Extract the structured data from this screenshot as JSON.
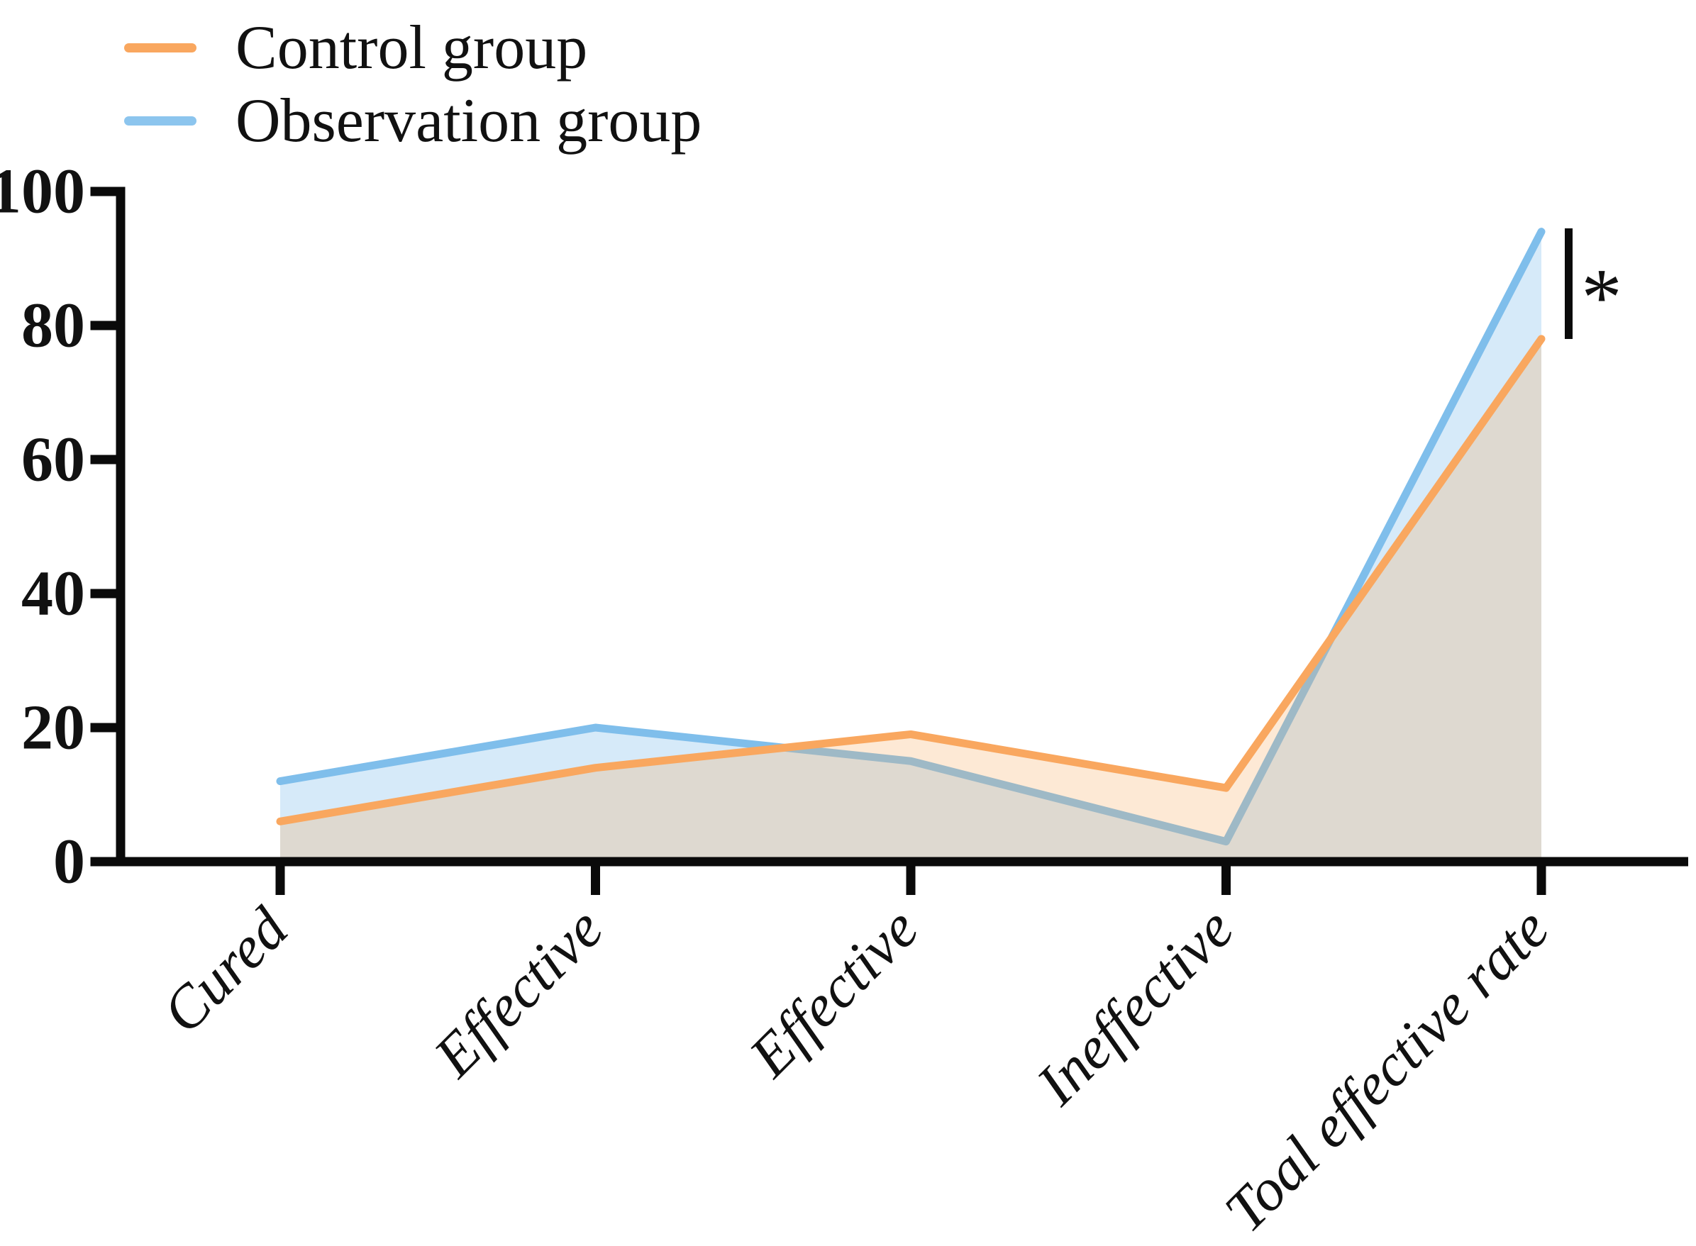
{
  "figure": {
    "background": "#ffffff"
  },
  "legend": {
    "items": [
      {
        "label": "Control group",
        "color": "#F9A75F"
      },
      {
        "label": "Observation group",
        "color": "#8CC5EE"
      }
    ]
  },
  "chart_data": {
    "type": "area",
    "title": "",
    "xlabel": "",
    "ylabel": "",
    "categories": [
      "Cured",
      "Effective",
      "Effective",
      "Ineffective",
      "Toal effective rate"
    ],
    "series": [
      {
        "name": "Observation group",
        "values": [
          12,
          20,
          15,
          3,
          94
        ],
        "line_color": "#7FBEEB",
        "fill_color": "rgba(127,190,235,0.32)"
      },
      {
        "name": "Control group",
        "values": [
          6,
          14,
          19,
          11,
          78
        ],
        "line_color": "#F9A75F",
        "fill_color": "rgba(249,169,93,0.26)"
      }
    ],
    "ylim": [
      0,
      100
    ],
    "yticks": [
      0,
      20,
      40,
      60,
      80,
      100
    ],
    "grid": false,
    "legend_position": "top-left",
    "axis_color": "#0a0a0a",
    "text_color": "#111111",
    "annotation": {
      "symbol": "*",
      "at_category": "Toal effective rate",
      "between": [
        "Observation group",
        "Control group"
      ]
    }
  }
}
